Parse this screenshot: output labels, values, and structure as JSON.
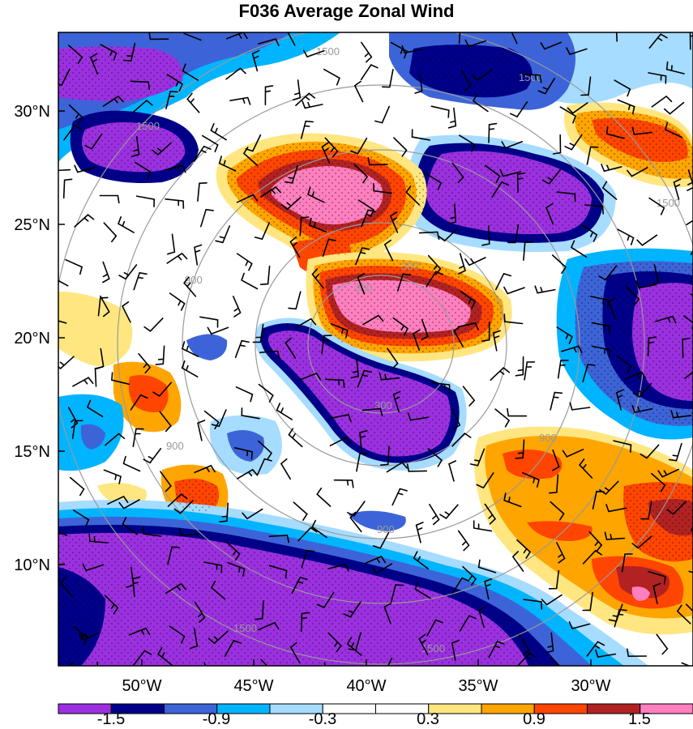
{
  "title": "F036 Average Zonal Wind",
  "lat_labels": [
    "30°N",
    "25°N",
    "20°N",
    "15°N",
    "10°N"
  ],
  "lon_labels": [
    "50°W",
    "45°W",
    "40°W",
    "35°W",
    "30°W"
  ],
  "ring_labels": [
    "300",
    "300",
    "300",
    "900",
    "900",
    "900",
    "900",
    "1500",
    "1500",
    "1500",
    "1500",
    "1500",
    "1500"
  ],
  "colorbar": {
    "labels": [
      "-1.5",
      "-0.9",
      "-0.3",
      "0.3",
      "0.9",
      "1.5"
    ],
    "colors": [
      "#9b30e0",
      "#00008b",
      "#3c64d8",
      "#00b4ff",
      "#a6dcff",
      "#ffffff",
      "#ffffff",
      "#ffe680",
      "#ffa500",
      "#ff4500",
      "#b22222",
      "#ff7fbf"
    ]
  },
  "palette": {
    "strong_negative": "#9b30e0",
    "negative": "#00008b",
    "weak_negative": "#3c64d8",
    "slight_negative": "#00b4ff",
    "near_zero_negative": "#a6dcff",
    "neutral": "#ffffff",
    "near_zero_positive": "#ffe680",
    "slight_positive": "#ffa500",
    "positive": "#ff4500",
    "strong_positive": "#b22222",
    "extreme_positive": "#ff7fbf",
    "ring_color": "#9a9a9a"
  }
}
